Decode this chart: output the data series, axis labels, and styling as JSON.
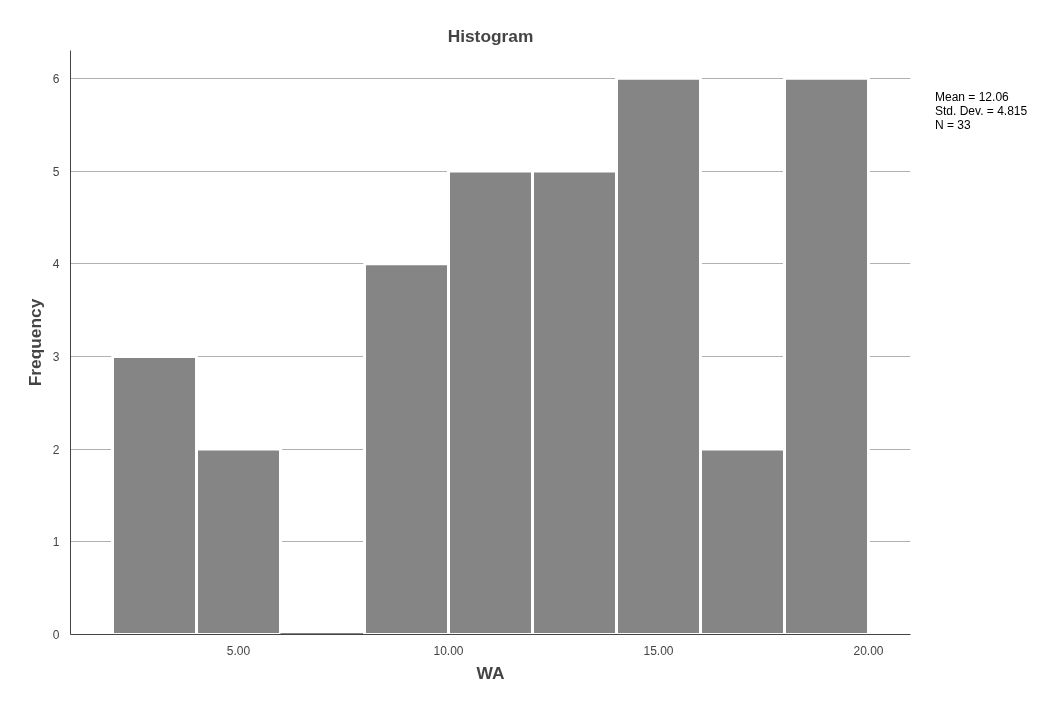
{
  "chart_data": {
    "type": "histogram",
    "title": "Histogram",
    "xlabel": "WA",
    "ylabel": "Frequency",
    "bins": [
      2,
      4,
      6,
      8,
      10,
      12,
      14,
      16,
      18,
      20
    ],
    "values": [
      3,
      2,
      0,
      4,
      5,
      5,
      6,
      2,
      6
    ],
    "color": "#858585",
    "xlim": [
      1,
      21
    ],
    "xticks": [
      {
        "value": 5,
        "label": "5.00"
      },
      {
        "value": 10,
        "label": "10.00"
      },
      {
        "value": 15,
        "label": "15.00"
      },
      {
        "value": 20,
        "label": "20.00"
      }
    ],
    "ylim": [
      0,
      6.3
    ],
    "yticks": [
      0,
      1,
      2,
      3,
      4,
      5,
      6
    ],
    "grid": "y",
    "legend": false,
    "annotations": [
      "Mean = 12.06",
      "Std. Dev. = 4.815",
      "N = 33"
    ]
  }
}
